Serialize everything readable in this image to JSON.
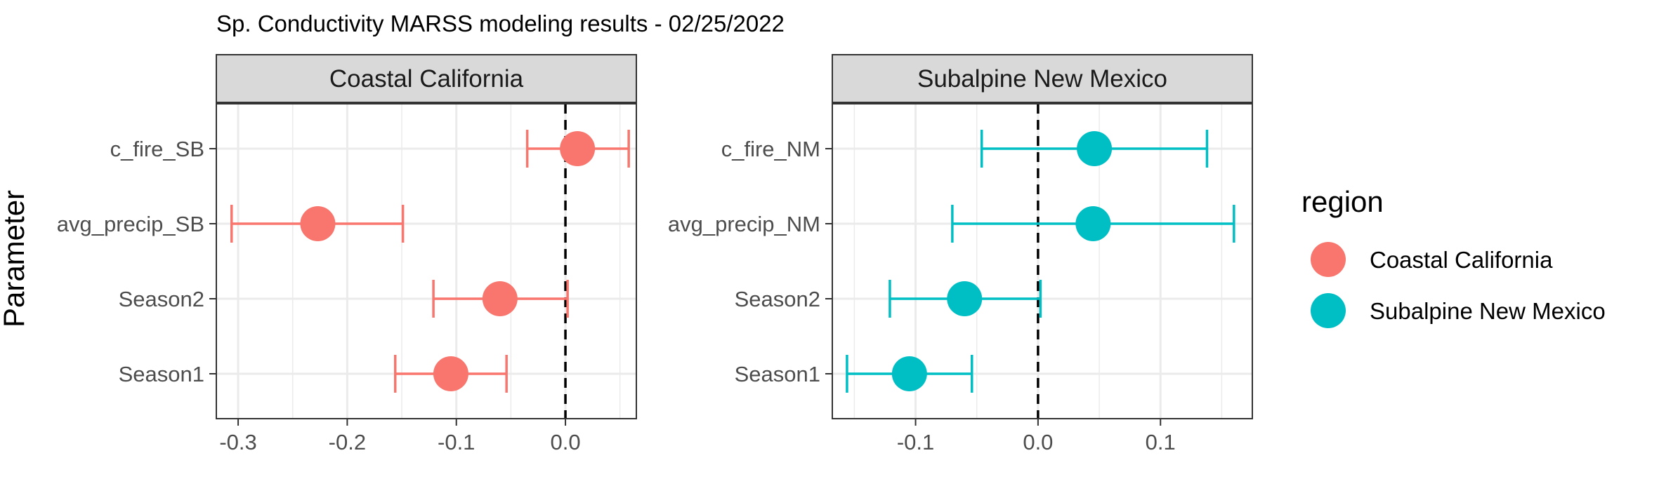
{
  "chart_data": {
    "type": "errorbar",
    "title": "Sp. Conductivity MARSS modeling results - 02/25/2022",
    "ylabel": "Parameter",
    "xlabel": "",
    "grid": true,
    "reference_line": 0,
    "legend": {
      "title": "region",
      "position": "right",
      "entries": [
        {
          "name": "Coastal California",
          "color": "#F8766D"
        },
        {
          "name": "Subalpine New Mexico",
          "color": "#00BFC4"
        }
      ]
    },
    "panels": [
      {
        "strip_label": "Coastal California",
        "color": "#F8766D",
        "xlim": [
          -0.32,
          0.065
        ],
        "x_ticks": [
          -0.3,
          -0.2,
          -0.1,
          0.0
        ],
        "x_tick_labels": [
          "-0.3",
          "-0.2",
          "-0.1",
          "0.0"
        ],
        "points": [
          {
            "parameter": "c_fire_SB",
            "estimate": 0.011,
            "lower": -0.035,
            "upper": 0.058
          },
          {
            "parameter": "avg_precip_SB",
            "estimate": -0.227,
            "lower": -0.306,
            "upper": -0.149
          },
          {
            "parameter": "Season2",
            "estimate": -0.06,
            "lower": -0.121,
            "upper": 0.002
          },
          {
            "parameter": "Season1",
            "estimate": -0.105,
            "lower": -0.156,
            "upper": -0.054
          }
        ]
      },
      {
        "strip_label": "Subalpine New Mexico",
        "color": "#00BFC4",
        "xlim": [
          -0.168,
          0.175
        ],
        "x_ticks": [
          -0.1,
          0.0,
          0.1
        ],
        "x_tick_labels": [
          "-0.1",
          "0.0",
          "0.1"
        ],
        "points": [
          {
            "parameter": "c_fire_NM",
            "estimate": 0.046,
            "lower": -0.046,
            "upper": 0.138
          },
          {
            "parameter": "avg_precip_NM",
            "estimate": 0.045,
            "lower": -0.07,
            "upper": 0.16
          },
          {
            "parameter": "Season2",
            "estimate": -0.06,
            "lower": -0.121,
            "upper": 0.002
          },
          {
            "parameter": "Season1",
            "estimate": -0.105,
            "lower": -0.156,
            "upper": -0.054
          }
        ]
      }
    ]
  }
}
